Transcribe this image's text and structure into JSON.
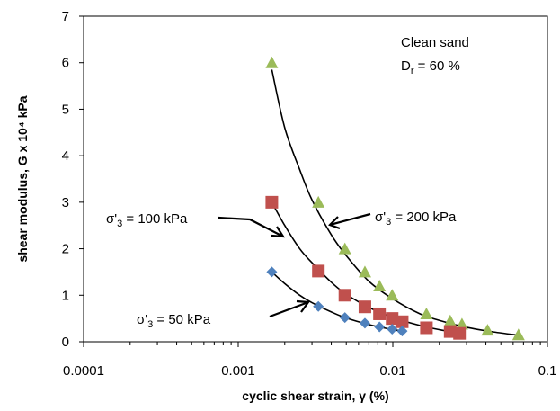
{
  "chart_data": {
    "type": "scatter",
    "xlabel": "cyclic shear strain, γ (%)",
    "ylabel": "shear modulus, G x 10⁴ kPa",
    "xscale": "log",
    "xlim": [
      0.0001,
      0.1
    ],
    "ylim": [
      0,
      7
    ],
    "x_tick_labels": [
      "0.0001",
      "0.001",
      "0.01",
      "0.1"
    ],
    "y_tick_labels": [
      "0",
      "1",
      "2",
      "3",
      "4",
      "5",
      "6",
      "7"
    ],
    "grid": false,
    "annotations": {
      "material_line1": "Clean sand",
      "material_line2_main": "D",
      "material_line2_sub": "r",
      "material_line2_rest": " = 60 %",
      "label_200": {
        "main": "σ'",
        "sub": "3",
        "rest": " = 200 kPa"
      },
      "label_100": {
        "main": "σ'",
        "sub": "3",
        "rest": " = 100 kPa"
      },
      "label_50": {
        "main": "σ'",
        "sub": "3",
        "rest": " = 50 kPa"
      }
    },
    "series": [
      {
        "marker": "triangle",
        "color": "#9BBB59",
        "x": [
          0.00165,
          0.0033,
          0.0049,
          0.0066,
          0.0082,
          0.0099,
          0.0165,
          0.0235,
          0.028,
          0.041,
          0.065
        ],
        "y": [
          6.0,
          3.0,
          2.0,
          1.5,
          1.2,
          1.0,
          0.6,
          0.45,
          0.38,
          0.25,
          0.15
        ],
        "fit": [
          [
            0.00165,
            5.85
          ],
          [
            0.002,
            4.6
          ],
          [
            0.0025,
            3.7
          ],
          [
            0.003,
            3.05
          ],
          [
            0.004,
            2.3
          ],
          [
            0.005,
            1.85
          ],
          [
            0.007,
            1.3
          ],
          [
            0.01,
            0.92
          ],
          [
            0.015,
            0.6
          ],
          [
            0.02,
            0.46
          ],
          [
            0.03,
            0.31
          ],
          [
            0.045,
            0.21
          ],
          [
            0.065,
            0.14
          ]
        ]
      },
      {
        "marker": "square",
        "color": "#C0504D",
        "x": [
          0.00165,
          0.0033,
          0.0049,
          0.0066,
          0.0082,
          0.0099,
          0.0115,
          0.0165,
          0.0235,
          0.027
        ],
        "y": [
          3.0,
          1.52,
          1.0,
          0.75,
          0.6,
          0.5,
          0.43,
          0.3,
          0.22,
          0.18
        ],
        "fit": [
          [
            0.00165,
            3.0
          ],
          [
            0.002,
            2.5
          ],
          [
            0.0025,
            2.0
          ],
          [
            0.003,
            1.7
          ],
          [
            0.004,
            1.28
          ],
          [
            0.005,
            1.02
          ],
          [
            0.007,
            0.74
          ],
          [
            0.01,
            0.52
          ],
          [
            0.015,
            0.35
          ],
          [
            0.02,
            0.26
          ],
          [
            0.027,
            0.19
          ]
        ]
      },
      {
        "marker": "diamond",
        "color": "#4F81BD",
        "x": [
          0.00165,
          0.0033,
          0.0049,
          0.0066,
          0.0082,
          0.0099,
          0.0115
        ],
        "y": [
          1.5,
          0.76,
          0.52,
          0.4,
          0.32,
          0.27,
          0.23
        ],
        "fit": [
          [
            0.00165,
            1.5
          ],
          [
            0.002,
            1.25
          ],
          [
            0.0025,
            1.0
          ],
          [
            0.003,
            0.84
          ],
          [
            0.004,
            0.64
          ],
          [
            0.005,
            0.51
          ],
          [
            0.007,
            0.37
          ],
          [
            0.009,
            0.29
          ],
          [
            0.0115,
            0.23
          ]
        ]
      }
    ]
  }
}
